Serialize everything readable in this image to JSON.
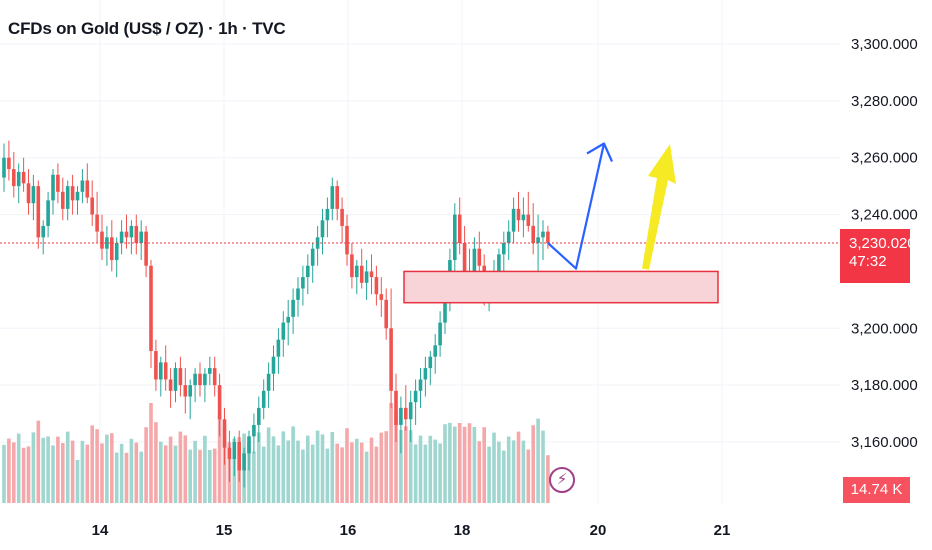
{
  "title": "CFDs on Gold (US$ / OZ) · 1h · TVC",
  "last_price": "3,230.020",
  "countdown": "47:32",
  "volume_label": "14.74 K",
  "colors": {
    "up": "#26a69a",
    "down": "#ef5350",
    "vol_up": "#9fd6cf",
    "vol_down": "#f5a8aa",
    "zone_fill": "#f8d4d8",
    "zone_stroke": "#e8323f",
    "arrow_blue": "#2962ff",
    "arrow_yellow": "#f5ea24",
    "price_line": "#f23645"
  },
  "chart_data": {
    "type": "candlestick",
    "y_axis_ticks": [
      "3,300.000",
      "3,280.000",
      "3,260.000",
      "3,240.000",
      "3,200.000",
      "3,180.000",
      "3,160.000"
    ],
    "y_axis_tick_values": [
      3300,
      3280,
      3260,
      3240,
      3200,
      3180,
      3160
    ],
    "x_axis_ticks": [
      "14",
      "15",
      "16",
      "18",
      "20",
      "21"
    ],
    "ylim": [
      3142,
      3306
    ],
    "current_price": 3230.02,
    "volume_last": 14.74,
    "candles": [
      [
        3253,
        3265,
        3248,
        3260
      ],
      [
        3260,
        3266,
        3252,
        3256
      ],
      [
        3256,
        3262,
        3246,
        3250
      ],
      [
        3250,
        3258,
        3244,
        3255
      ],
      [
        3255,
        3260,
        3248,
        3251
      ],
      [
        3251,
        3256,
        3240,
        3244
      ],
      [
        3244,
        3254,
        3238,
        3250
      ],
      [
        3250,
        3252,
        3228,
        3232
      ],
      [
        3232,
        3238,
        3226,
        3236
      ],
      [
        3236,
        3248,
        3232,
        3245
      ],
      [
        3245,
        3256,
        3240,
        3254
      ],
      [
        3254,
        3258,
        3244,
        3248
      ],
      [
        3248,
        3253,
        3238,
        3242
      ],
      [
        3242,
        3252,
        3238,
        3250
      ],
      [
        3250,
        3254,
        3240,
        3245
      ],
      [
        3245,
        3250,
        3240,
        3248
      ],
      [
        3248,
        3256,
        3244,
        3252
      ],
      [
        3252,
        3258,
        3244,
        3246
      ],
      [
        3246,
        3252,
        3236,
        3240
      ],
      [
        3240,
        3248,
        3230,
        3234
      ],
      [
        3234,
        3240,
        3224,
        3228
      ],
      [
        3228,
        3236,
        3222,
        3232
      ],
      [
        3232,
        3238,
        3220,
        3224
      ],
      [
        3224,
        3232,
        3218,
        3230
      ],
      [
        3230,
        3238,
        3226,
        3234
      ],
      [
        3234,
        3240,
        3228,
        3232
      ],
      [
        3232,
        3238,
        3226,
        3236
      ],
      [
        3236,
        3240,
        3226,
        3230
      ],
      [
        3230,
        3238,
        3224,
        3234
      ],
      [
        3234,
        3236,
        3218,
        3222
      ],
      [
        3222,
        3224,
        3186,
        3192
      ],
      [
        3192,
        3196,
        3178,
        3182
      ],
      [
        3182,
        3190,
        3176,
        3188
      ],
      [
        3188,
        3194,
        3178,
        3182
      ],
      [
        3182,
        3186,
        3172,
        3178
      ],
      [
        3178,
        3188,
        3174,
        3186
      ],
      [
        3186,
        3190,
        3176,
        3180
      ],
      [
        3180,
        3186,
        3170,
        3176
      ],
      [
        3176,
        3182,
        3168,
        3180
      ],
      [
        3180,
        3186,
        3174,
        3184
      ],
      [
        3184,
        3188,
        3176,
        3180
      ],
      [
        3180,
        3186,
        3174,
        3184
      ],
      [
        3184,
        3190,
        3180,
        3186
      ],
      [
        3186,
        3190,
        3176,
        3180
      ],
      [
        3180,
        3184,
        3162,
        3168
      ],
      [
        3168,
        3172,
        3152,
        3158
      ],
      [
        3158,
        3164,
        3146,
        3154
      ],
      [
        3154,
        3162,
        3148,
        3160
      ],
      [
        3160,
        3164,
        3146,
        3150
      ],
      [
        3150,
        3158,
        3144,
        3156
      ],
      [
        3156,
        3164,
        3150,
        3162
      ],
      [
        3162,
        3170,
        3156,
        3166
      ],
      [
        3166,
        3176,
        3160,
        3172
      ],
      [
        3172,
        3182,
        3168,
        3178
      ],
      [
        3178,
        3188,
        3172,
        3184
      ],
      [
        3184,
        3194,
        3178,
        3190
      ],
      [
        3190,
        3200,
        3184,
        3196
      ],
      [
        3196,
        3206,
        3190,
        3202
      ],
      [
        3202,
        3210,
        3194,
        3204
      ],
      [
        3204,
        3214,
        3198,
        3210
      ],
      [
        3210,
        3218,
        3204,
        3214
      ],
      [
        3214,
        3222,
        3208,
        3218
      ],
      [
        3218,
        3226,
        3212,
        3222
      ],
      [
        3222,
        3230,
        3216,
        3228
      ],
      [
        3228,
        3236,
        3222,
        3232
      ],
      [
        3232,
        3242,
        3226,
        3238
      ],
      [
        3238,
        3246,
        3232,
        3242
      ],
      [
        3242,
        3253,
        3238,
        3250
      ],
      [
        3250,
        3252,
        3238,
        3242
      ],
      [
        3242,
        3246,
        3230,
        3236
      ],
      [
        3236,
        3240,
        3222,
        3226
      ],
      [
        3226,
        3230,
        3214,
        3218
      ],
      [
        3218,
        3224,
        3212,
        3222
      ],
      [
        3222,
        3228,
        3214,
        3216
      ],
      [
        3216,
        3224,
        3210,
        3220
      ],
      [
        3220,
        3226,
        3212,
        3218
      ],
      [
        3218,
        3222,
        3208,
        3212
      ],
      [
        3212,
        3218,
        3204,
        3210
      ],
      [
        3210,
        3214,
        3196,
        3200
      ],
      [
        3200,
        3214,
        3172,
        3178
      ],
      [
        3178,
        3184,
        3160,
        3166
      ],
      [
        3166,
        3176,
        3156,
        3172
      ],
      [
        3172,
        3180,
        3164,
        3168
      ],
      [
        3168,
        3178,
        3160,
        3174
      ],
      [
        3174,
        3182,
        3166,
        3178
      ],
      [
        3178,
        3186,
        3172,
        3182
      ],
      [
        3182,
        3190,
        3176,
        3186
      ],
      [
        3186,
        3192,
        3180,
        3190
      ],
      [
        3190,
        3198,
        3184,
        3194
      ],
      [
        3194,
        3206,
        3190,
        3202
      ],
      [
        3202,
        3216,
        3198,
        3212
      ],
      [
        3212,
        3228,
        3206,
        3224
      ],
      [
        3224,
        3244,
        3220,
        3240
      ],
      [
        3240,
        3246,
        3226,
        3230
      ],
      [
        3230,
        3236,
        3214,
        3220
      ],
      [
        3220,
        3228,
        3210,
        3216
      ],
      [
        3216,
        3232,
        3212,
        3228
      ],
      [
        3228,
        3234,
        3216,
        3222
      ],
      [
        3222,
        3226,
        3208,
        3212
      ],
      [
        3212,
        3220,
        3206,
        3216
      ],
      [
        3216,
        3224,
        3210,
        3220
      ],
      [
        3220,
        3228,
        3214,
        3226
      ],
      [
        3226,
        3234,
        3220,
        3230
      ],
      [
        3230,
        3238,
        3224,
        3234
      ],
      [
        3234,
        3246,
        3230,
        3242
      ],
      [
        3242,
        3248,
        3234,
        3238
      ],
      [
        3238,
        3246,
        3232,
        3240
      ],
      [
        3240,
        3248,
        3234,
        3236
      ],
      [
        3236,
        3244,
        3226,
        3230
      ],
      [
        3230,
        3240,
        3216,
        3232
      ],
      [
        3232,
        3238,
        3224,
        3234
      ],
      [
        3234,
        3236,
        3228,
        3230
      ]
    ],
    "zone": {
      "low": 3209,
      "high": 3220
    },
    "projection_blue": [
      [
        3230,
        3221
      ],
      [
        3221,
        3265
      ]
    ],
    "projection_yellow": [
      [
        3221,
        3262
      ]
    ]
  }
}
